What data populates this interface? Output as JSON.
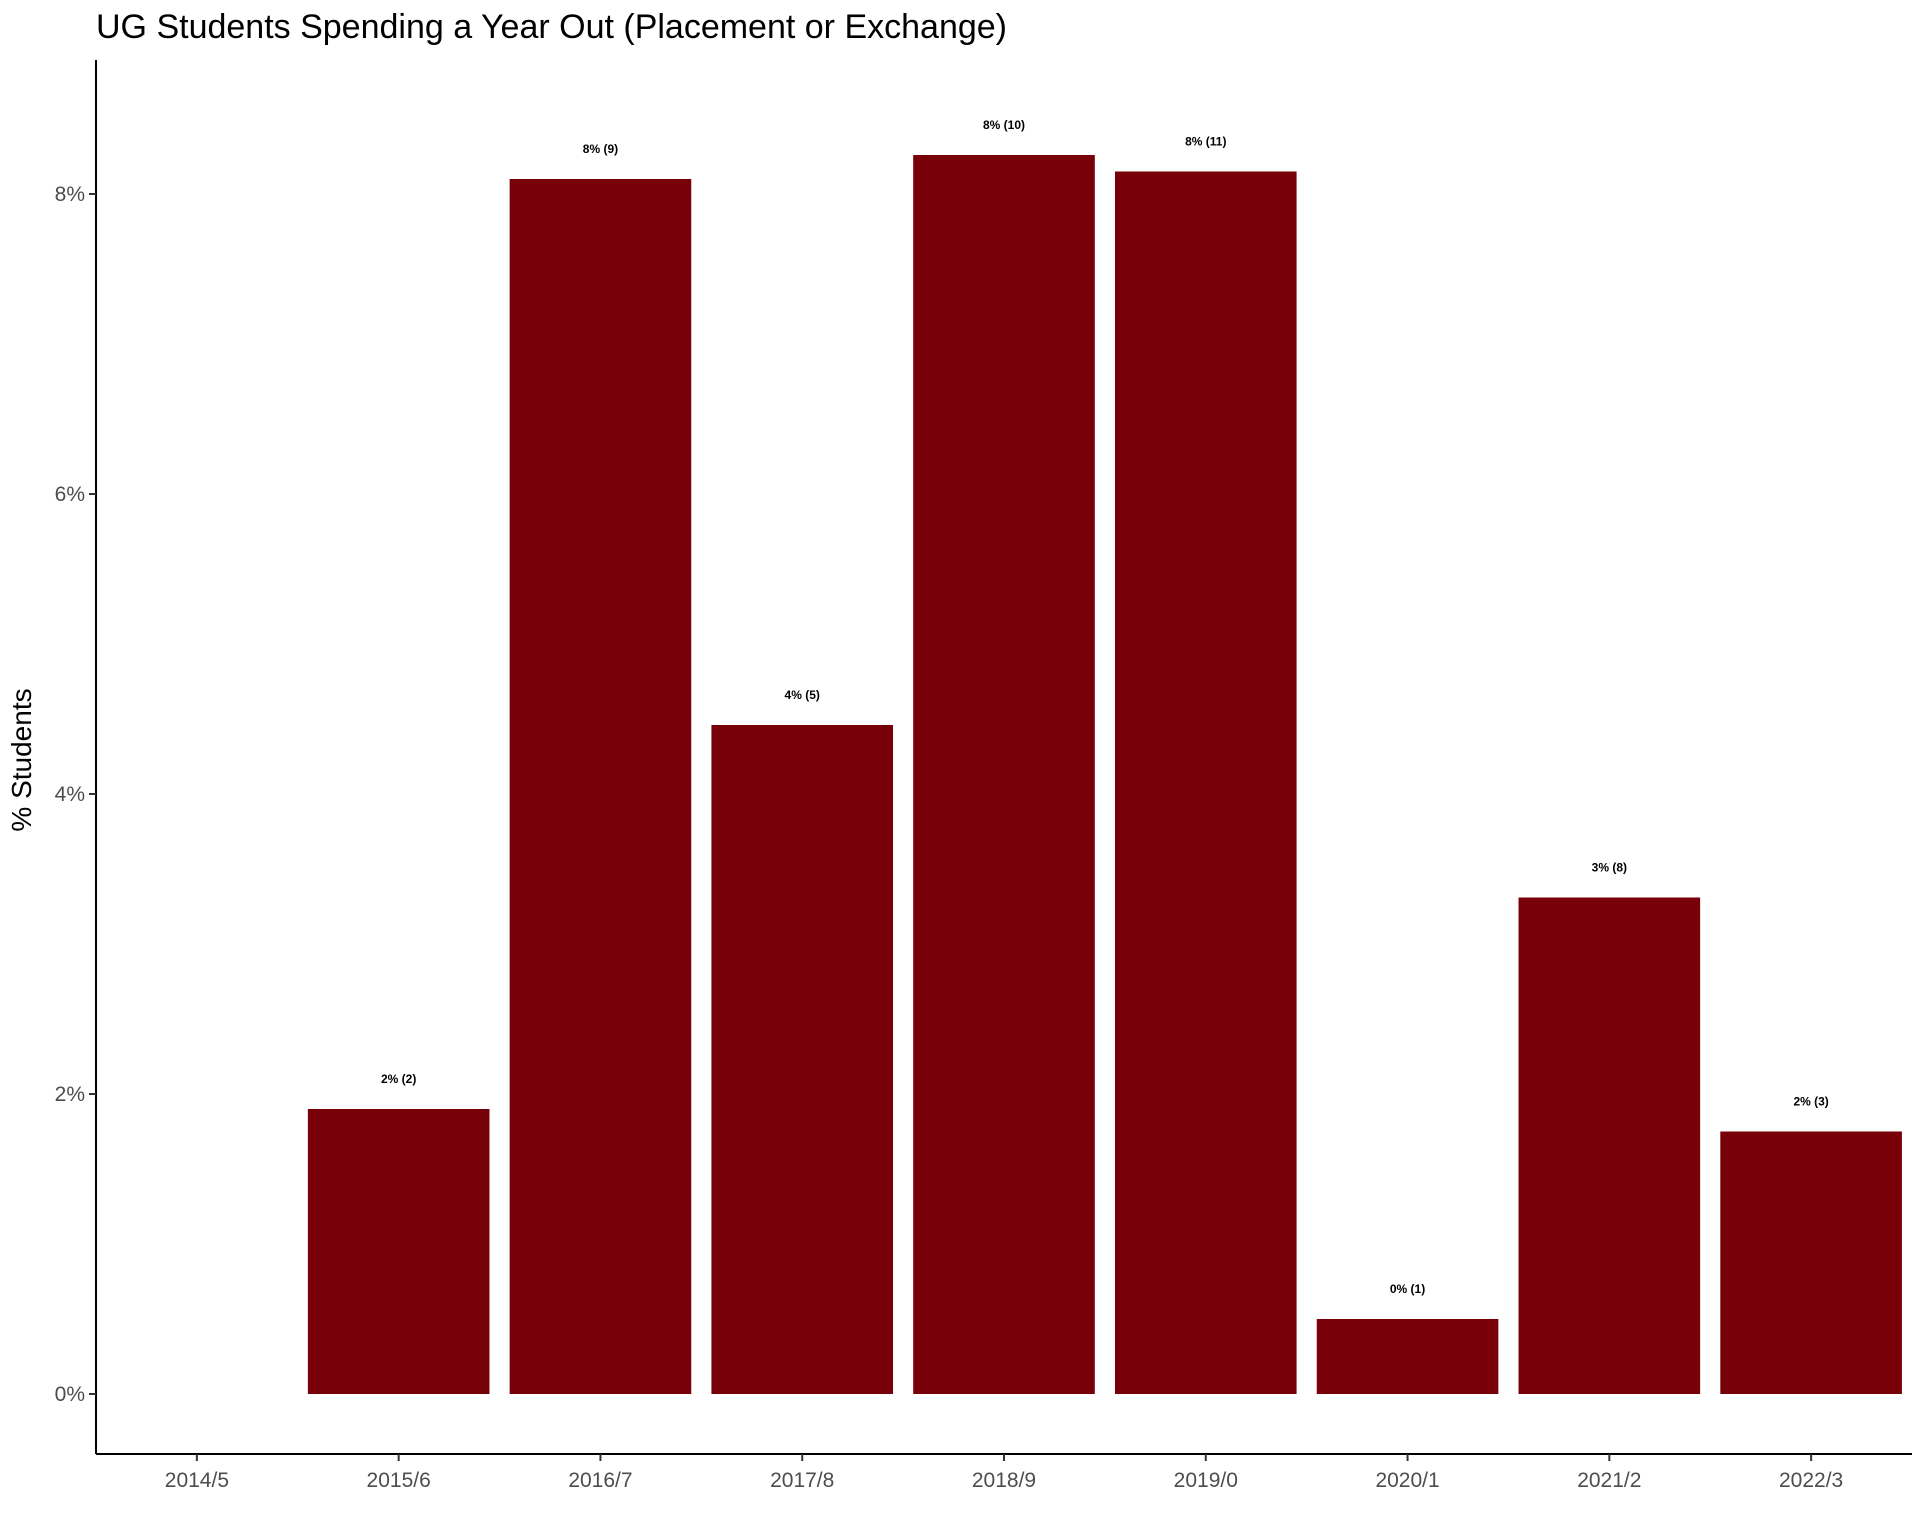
{
  "chart_data": {
    "type": "bar",
    "title": "UG Students Spending a Year Out (Placement or Exchange)",
    "xlabel": "",
    "ylabel": "% Students",
    "categories": [
      "2014/5",
      "2015/6",
      "2016/7",
      "2017/8",
      "2018/9",
      "2019/0",
      "2020/1",
      "2021/2",
      "2022/3"
    ],
    "values": [
      null,
      1.9,
      8.1,
      4.46,
      8.26,
      8.15,
      0.5,
      3.31,
      1.75
    ],
    "labels": [
      "",
      "2% (2)",
      "8% (9)",
      "4% (5)",
      "8% (10)",
      "8% (11)",
      "0% (1)",
      "3% (8)",
      "2% (3)"
    ],
    "yticks": [
      0,
      2,
      4,
      6,
      8
    ],
    "ytick_labels": [
      "0%",
      "2%",
      "4%",
      "6%",
      "8%"
    ],
    "ylim": [
      -0.42,
      8.9
    ],
    "grid": false,
    "legend": "none",
    "bar_color": "#780008"
  }
}
